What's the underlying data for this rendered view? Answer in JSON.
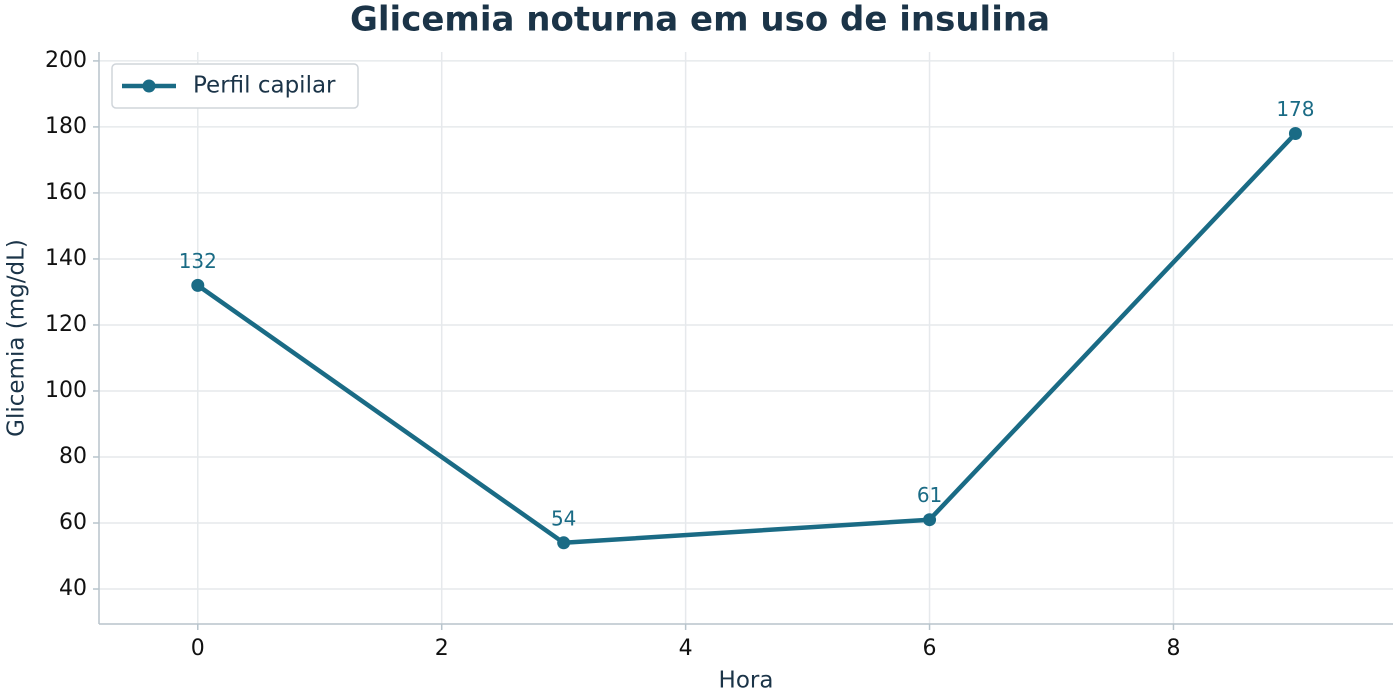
{
  "chart_data": {
    "type": "line",
    "title": "Glicemia noturna em uso de insulina",
    "x_label": "Hora",
    "y_label": "Glicemia (mg/dL)",
    "x": [
      0,
      3,
      6,
      9
    ],
    "series": [
      {
        "name": "Perfil capilar",
        "color": "#1a6b85",
        "values": [
          132,
          54,
          61,
          178
        ]
      }
    ],
    "xlim": [
      -0.81,
      9.8
    ],
    "xticks": [
      0,
      2,
      4,
      6,
      8
    ],
    "ylim": [
      29.4,
      202.7
    ],
    "yticks": [
      40,
      60,
      80,
      100,
      120,
      140,
      160,
      180,
      200
    ],
    "grid": true,
    "legend": "upper left",
    "data_labels": true
  }
}
